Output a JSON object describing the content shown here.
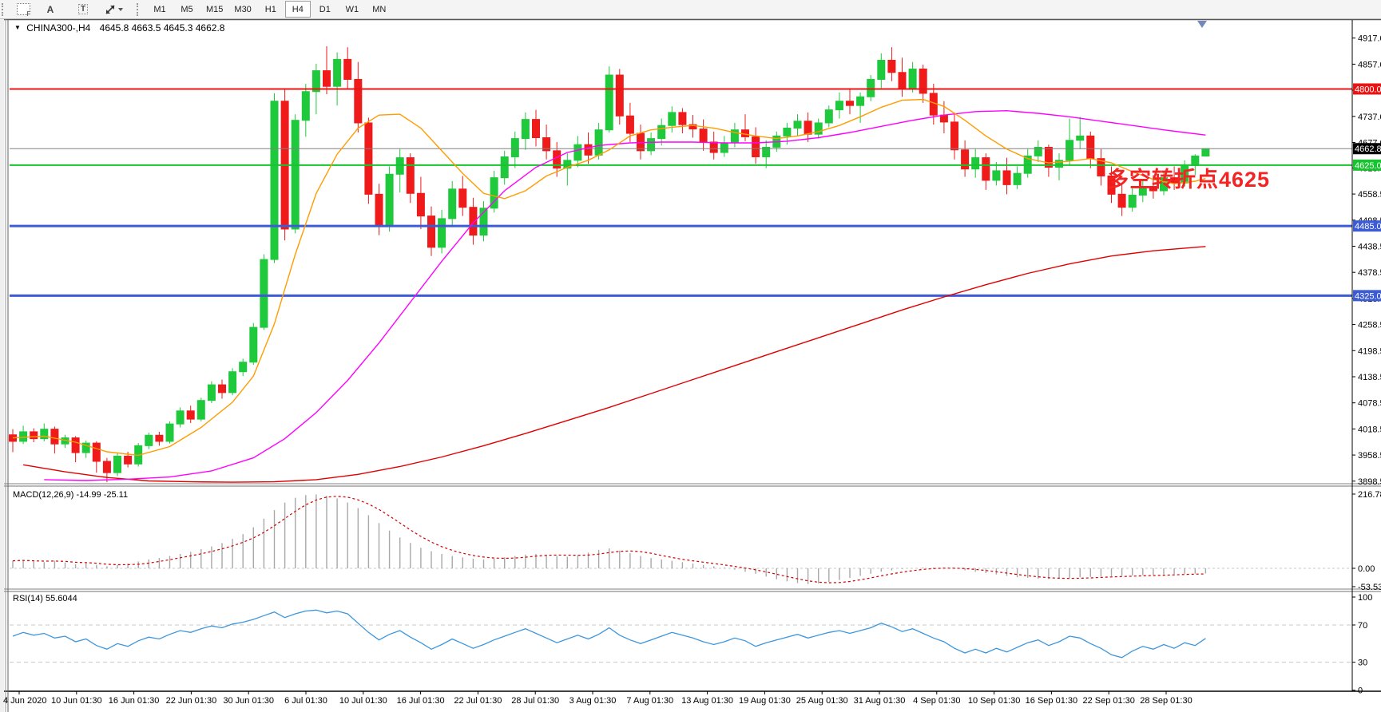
{
  "toolbar": {
    "icon_f": "F",
    "icon_a": "A",
    "icon_t": "T",
    "timeframes": [
      "M1",
      "M5",
      "M15",
      "M30",
      "H1",
      "H4",
      "D1",
      "W1",
      "MN"
    ],
    "active_timeframe": "H4"
  },
  "chart": {
    "symbol_period": "CHINA300-,H4",
    "ohlc": "4645.8 4663.5 4645.3 4662.8",
    "macd_label": "MACD(12,26,9) -14.99 -25.11",
    "rsi_label": "RSI(14) 55.6044",
    "annotation": {
      "text": "多空转折点4625"
    }
  },
  "colors": {
    "up": "#1ec93c",
    "down": "#ef1a1a",
    "ma_fast": "#ff9c00",
    "ma_mid": "#ff00ff",
    "ma_slow": "#e00000",
    "rsi_line": "#3d96dd",
    "macd_hist": "#a8a8a8",
    "macd_signal": "#d00000",
    "annotation": "#f22424",
    "axis_text": "#000000",
    "level_red": "#e81414",
    "level_green": "#17c32e",
    "level_blue": "#3d5bd5",
    "current_price_line": "#808080",
    "current_price_label_bg": "#000000"
  },
  "chart_data": {
    "type": "candlestick+indicators",
    "title": "CHINA300-,H4",
    "price_axis": {
      "ticks": [
        4917.0,
        4857.0,
        4797.0,
        4737.0,
        4677.0,
        4618.5,
        4558.5,
        4498.5,
        4438.5,
        4378.5,
        4318.5,
        4258.5,
        4198.5,
        4138.5,
        4078.5,
        4018.5,
        3958.5,
        3898.5
      ],
      "visible_range": [
        3880,
        4940
      ]
    },
    "levels": [
      {
        "price": 4800.0,
        "label": "4800.0",
        "line": "#e81414",
        "label_bg": "#e81414",
        "width": 2
      },
      {
        "price": 4662.8,
        "label": "4662.8",
        "line": "#808080",
        "label_bg": "#000000",
        "width": 1,
        "role": "current-price"
      },
      {
        "price": 4625.0,
        "label": "4625.0",
        "line": "#17c32e",
        "label_bg": "#17c32e",
        "width": 2
      },
      {
        "price": 4485.0,
        "label": "4485.0",
        "line": "#3d5bd5",
        "label_bg": "#3d5bd5",
        "width": 3
      },
      {
        "price": 4325.0,
        "label": "4325.0",
        "line": "#3d5bd5",
        "label_bg": "#3d5bd5",
        "width": 3
      }
    ],
    "x_labels": [
      "4 Jun 2020",
      "10 Jun 01:30",
      "16 Jun 01:30",
      "22 Jun 01:30",
      "30 Jun 01:30",
      "6 Jul 01:30",
      "10 Jul 01:30",
      "16 Jul 01:30",
      "22 Jul 01:30",
      "28 Jul 01:30",
      "3 Aug 01:30",
      "7 Aug 01:30",
      "13 Aug 01:30",
      "19 Aug 01:30",
      "25 Aug 01:30",
      "31 Aug 01:30",
      "4 Sep 01:30",
      "10 Sep 01:30",
      "16 Sep 01:30",
      "22 Sep 01:30",
      "28 Sep 01:30"
    ],
    "candles": [
      [
        4005,
        4018,
        3965,
        3990
      ],
      [
        3990,
        4026,
        3984,
        4012
      ],
      [
        4012,
        4020,
        3988,
        3996
      ],
      [
        3996,
        4031,
        3990,
        4018
      ],
      [
        4018,
        4024,
        3962,
        3984
      ],
      [
        3984,
        4005,
        3975,
        3998
      ],
      [
        3998,
        4002,
        3942,
        3964
      ],
      [
        3964,
        3992,
        3952,
        3986
      ],
      [
        3986,
        3990,
        3918,
        3944
      ],
      [
        3944,
        3952,
        3896,
        3918
      ],
      [
        3918,
        3962,
        3910,
        3956
      ],
      [
        3956,
        3966,
        3930,
        3938
      ],
      [
        3938,
        3986,
        3932,
        3980
      ],
      [
        3980,
        4010,
        3972,
        4004
      ],
      [
        4004,
        4012,
        3980,
        3990
      ],
      [
        3990,
        4036,
        3985,
        4030
      ],
      [
        4030,
        4068,
        4022,
        4060
      ],
      [
        4060,
        4072,
        4032,
        4041
      ],
      [
        4041,
        4090,
        4036,
        4084
      ],
      [
        4084,
        4128,
        4078,
        4120
      ],
      [
        4120,
        4132,
        4088,
        4102
      ],
      [
        4102,
        4158,
        4096,
        4150
      ],
      [
        4150,
        4180,
        4140,
        4172
      ],
      [
        4172,
        4262,
        4166,
        4252
      ],
      [
        4252,
        4420,
        4246,
        4408
      ],
      [
        4408,
        4790,
        4400,
        4772
      ],
      [
        4772,
        4802,
        4452,
        4478
      ],
      [
        4478,
        4742,
        4468,
        4728
      ],
      [
        4728,
        4812,
        4690,
        4794
      ],
      [
        4794,
        4858,
        4742,
        4842
      ],
      [
        4842,
        4898,
        4788,
        4806
      ],
      [
        4806,
        4884,
        4762,
        4868
      ],
      [
        4868,
        4896,
        4800,
        4822
      ],
      [
        4822,
        4862,
        4700,
        4722
      ],
      [
        4722,
        4734,
        4536,
        4558
      ],
      [
        4558,
        4582,
        4464,
        4486
      ],
      [
        4486,
        4622,
        4472,
        4604
      ],
      [
        4604,
        4662,
        4562,
        4642
      ],
      [
        4642,
        4652,
        4538,
        4560
      ],
      [
        4560,
        4598,
        4478,
        4508
      ],
      [
        4508,
        4530,
        4416,
        4436
      ],
      [
        4436,
        4522,
        4422,
        4502
      ],
      [
        4502,
        4588,
        4482,
        4570
      ],
      [
        4570,
        4600,
        4508,
        4528
      ],
      [
        4528,
        4550,
        4442,
        4464
      ],
      [
        4464,
        4542,
        4450,
        4526
      ],
      [
        4526,
        4612,
        4516,
        4596
      ],
      [
        4596,
        4658,
        4580,
        4644
      ],
      [
        4644,
        4702,
        4618,
        4686
      ],
      [
        4686,
        4746,
        4660,
        4730
      ],
      [
        4730,
        4752,
        4668,
        4688
      ],
      [
        4688,
        4718,
        4638,
        4658
      ],
      [
        4658,
        4678,
        4598,
        4618
      ],
      [
        4618,
        4652,
        4578,
        4636
      ],
      [
        4636,
        4692,
        4620,
        4672
      ],
      [
        4672,
        4700,
        4628,
        4648
      ],
      [
        4648,
        4722,
        4638,
        4706
      ],
      [
        4706,
        4852,
        4700,
        4832
      ],
      [
        4832,
        4846,
        4718,
        4738
      ],
      [
        4738,
        4768,
        4678,
        4698
      ],
      [
        4698,
        4718,
        4638,
        4658
      ],
      [
        4658,
        4700,
        4648,
        4686
      ],
      [
        4686,
        4732,
        4670,
        4716
      ],
      [
        4716,
        4760,
        4700,
        4746
      ],
      [
        4746,
        4756,
        4698,
        4718
      ],
      [
        4718,
        4740,
        4688,
        4708
      ],
      [
        4708,
        4730,
        4658,
        4678
      ],
      [
        4678,
        4702,
        4638,
        4654
      ],
      [
        4654,
        4692,
        4644,
        4676
      ],
      [
        4676,
        4722,
        4666,
        4706
      ],
      [
        4706,
        4742,
        4680,
        4690
      ],
      [
        4690,
        4712,
        4628,
        4644
      ],
      [
        4644,
        4682,
        4618,
        4666
      ],
      [
        4666,
        4702,
        4656,
        4692
      ],
      [
        4692,
        4722,
        4672,
        4710
      ],
      [
        4710,
        4742,
        4692,
        4726
      ],
      [
        4726,
        4746,
        4678,
        4696
      ],
      [
        4696,
        4732,
        4686,
        4722
      ],
      [
        4722,
        4762,
        4712,
        4752
      ],
      [
        4752,
        4792,
        4732,
        4772
      ],
      [
        4772,
        4802,
        4742,
        4762
      ],
      [
        4762,
        4792,
        4722,
        4782
      ],
      [
        4782,
        4832,
        4772,
        4822
      ],
      [
        4822,
        4882,
        4802,
        4866
      ],
      [
        4866,
        4896,
        4818,
        4838
      ],
      [
        4838,
        4872,
        4782,
        4802
      ],
      [
        4802,
        4862,
        4792,
        4846
      ],
      [
        4846,
        4856,
        4768,
        4790
      ],
      [
        4790,
        4812,
        4718,
        4740
      ],
      [
        4740,
        4772,
        4698,
        4724
      ],
      [
        4724,
        4746,
        4638,
        4660
      ],
      [
        4660,
        4682,
        4598,
        4616
      ],
      [
        4616,
        4662,
        4596,
        4642
      ],
      [
        4642,
        4652,
        4568,
        4590
      ],
      [
        4590,
        4632,
        4578,
        4612
      ],
      [
        4612,
        4642,
        4558,
        4580
      ],
      [
        4580,
        4622,
        4570,
        4606
      ],
      [
        4606,
        4662,
        4596,
        4646
      ],
      [
        4646,
        4682,
        4632,
        4666
      ],
      [
        4666,
        4672,
        4598,
        4620
      ],
      [
        4620,
        4652,
        4590,
        4636
      ],
      [
        4636,
        4732,
        4626,
        4682
      ],
      [
        4682,
        4736,
        4662,
        4692
      ],
      [
        4692,
        4702,
        4618,
        4640
      ],
      [
        4640,
        4662,
        4578,
        4600
      ],
      [
        4600,
        4622,
        4538,
        4558
      ],
      [
        4558,
        4582,
        4508,
        4528
      ],
      [
        4528,
        4572,
        4518,
        4556
      ],
      [
        4556,
        4592,
        4540,
        4576
      ],
      [
        4576,
        4602,
        4548,
        4566
      ],
      [
        4566,
        4612,
        4556,
        4596
      ],
      [
        4596,
        4622,
        4568,
        4584
      ],
      [
        4584,
        4636,
        4576,
        4624
      ],
      [
        4624,
        4650,
        4602,
        4646
      ],
      [
        4645.8,
        4663.5,
        4645.3,
        4662.8
      ]
    ],
    "ma_fast": [
      [
        0,
        3998
      ],
      [
        3,
        4002
      ],
      [
        6,
        3988
      ],
      [
        9,
        3966
      ],
      [
        12,
        3958
      ],
      [
        15,
        3978
      ],
      [
        18,
        4022
      ],
      [
        21,
        4080
      ],
      [
        23,
        4140
      ],
      [
        25,
        4260
      ],
      [
        27,
        4420
      ],
      [
        29,
        4560
      ],
      [
        31,
        4650
      ],
      [
        33,
        4710
      ],
      [
        35,
        4740
      ],
      [
        37,
        4742
      ],
      [
        39,
        4710
      ],
      [
        41,
        4658
      ],
      [
        43,
        4606
      ],
      [
        45,
        4560
      ],
      [
        47,
        4548
      ],
      [
        49,
        4566
      ],
      [
        51,
        4600
      ],
      [
        53,
        4620
      ],
      [
        55,
        4636
      ],
      [
        57,
        4660
      ],
      [
        59,
        4692
      ],
      [
        61,
        4706
      ],
      [
        63,
        4712
      ],
      [
        65,
        4716
      ],
      [
        67,
        4710
      ],
      [
        69,
        4700
      ],
      [
        71,
        4692
      ],
      [
        73,
        4686
      ],
      [
        75,
        4692
      ],
      [
        77,
        4702
      ],
      [
        79,
        4716
      ],
      [
        81,
        4736
      ],
      [
        83,
        4758
      ],
      [
        85,
        4774
      ],
      [
        87,
        4776
      ],
      [
        89,
        4760
      ],
      [
        91,
        4728
      ],
      [
        93,
        4692
      ],
      [
        95,
        4662
      ],
      [
        97,
        4640
      ],
      [
        99,
        4630
      ],
      [
        101,
        4634
      ],
      [
        103,
        4640
      ],
      [
        105,
        4630
      ],
      [
        107,
        4610
      ],
      [
        109,
        4592
      ],
      [
        111,
        4582
      ],
      [
        113,
        4588
      ],
      [
        114,
        4594
      ]
    ],
    "ma_mid": [
      [
        3,
        3902
      ],
      [
        7,
        3900
      ],
      [
        11,
        3903
      ],
      [
        15,
        3908
      ],
      [
        19,
        3922
      ],
      [
        23,
        3952
      ],
      [
        26,
        3996
      ],
      [
        29,
        4056
      ],
      [
        32,
        4130
      ],
      [
        35,
        4216
      ],
      [
        38,
        4310
      ],
      [
        41,
        4404
      ],
      [
        44,
        4492
      ],
      [
        47,
        4566
      ],
      [
        50,
        4620
      ],
      [
        53,
        4654
      ],
      [
        56,
        4670
      ],
      [
        59,
        4676
      ],
      [
        62,
        4678
      ],
      [
        65,
        4678
      ],
      [
        68,
        4676
      ],
      [
        71,
        4676
      ],
      [
        74,
        4680
      ],
      [
        77,
        4688
      ],
      [
        80,
        4700
      ],
      [
        83,
        4714
      ],
      [
        86,
        4728
      ],
      [
        89,
        4740
      ],
      [
        92,
        4748
      ],
      [
        95,
        4750
      ],
      [
        98,
        4744
      ],
      [
        101,
        4736
      ],
      [
        104,
        4726
      ],
      [
        107,
        4716
      ],
      [
        110,
        4706
      ],
      [
        112,
        4700
      ],
      [
        114,
        4694
      ]
    ],
    "ma_slow": [
      [
        1,
        3936
      ],
      [
        5,
        3920
      ],
      [
        9,
        3907
      ],
      [
        13,
        3899
      ],
      [
        17,
        3897
      ],
      [
        21,
        3896
      ],
      [
        25,
        3897
      ],
      [
        29,
        3902
      ],
      [
        33,
        3914
      ],
      [
        37,
        3932
      ],
      [
        41,
        3954
      ],
      [
        45,
        3980
      ],
      [
        49,
        4008
      ],
      [
        53,
        4038
      ],
      [
        57,
        4068
      ],
      [
        61,
        4100
      ],
      [
        65,
        4132
      ],
      [
        69,
        4164
      ],
      [
        73,
        4196
      ],
      [
        77,
        4228
      ],
      [
        81,
        4260
      ],
      [
        85,
        4292
      ],
      [
        89,
        4322
      ],
      [
        93,
        4350
      ],
      [
        97,
        4376
      ],
      [
        101,
        4398
      ],
      [
        105,
        4416
      ],
      [
        109,
        4428
      ],
      [
        112,
        4434
      ],
      [
        114,
        4438
      ]
    ],
    "macd": {
      "label": "MACD(12,26,9) -14.99 -25.11",
      "axis_ticks": [
        216.78,
        0.0,
        -53.53
      ],
      "axis_labels": [
        "216.78",
        "0.00",
        "-53.53"
      ],
      "hist": [
        22,
        24,
        20,
        18,
        22,
        17,
        12,
        14,
        10,
        6,
        10,
        14,
        20,
        26,
        30,
        36,
        42,
        48,
        56,
        64,
        74,
        86,
        100,
        120,
        145,
        170,
        192,
        206,
        214,
        216,
        212,
        204,
        192,
        176,
        155,
        132,
        110,
        90,
        74,
        60,
        50,
        42,
        36,
        32,
        28,
        26,
        28,
        32,
        36,
        40,
        42,
        40,
        36,
        34,
        38,
        46,
        54,
        58,
        52,
        44,
        36,
        30,
        26,
        22,
        18,
        14,
        10,
        6,
        2,
        -4,
        -10,
        -16,
        -24,
        -32,
        -38,
        -43,
        -46,
        -44,
        -40,
        -34,
        -28,
        -22,
        -16,
        -10,
        -6,
        -2,
        0,
        2,
        2,
        0,
        -2,
        -6,
        -10,
        -14,
        -18,
        -22,
        -26,
        -28,
        -30,
        -31,
        -30,
        -28,
        -26,
        -25,
        -24,
        -23,
        -22,
        -21,
        -20,
        -19,
        -18,
        -17,
        -16,
        -15.5,
        -15
      ]
    },
    "rsi": {
      "label": "RSI(14) 55.6044",
      "axis_ticks": [
        100,
        70,
        30,
        0
      ],
      "axis_labels": [
        "100",
        "70",
        "30",
        "0"
      ],
      "overbought": 70,
      "oversold": 30,
      "values": [
        58,
        62,
        59,
        61,
        56,
        58,
        52,
        55,
        48,
        44,
        50,
        47,
        53,
        57,
        55,
        60,
        64,
        62,
        66,
        69,
        67,
        71,
        73,
        76,
        80,
        84,
        78,
        82,
        85,
        86,
        83,
        85,
        82,
        72,
        62,
        54,
        60,
        64,
        57,
        51,
        44,
        49,
        55,
        50,
        45,
        49,
        54,
        58,
        62,
        66,
        61,
        56,
        51,
        55,
        59,
        55,
        60,
        67,
        59,
        54,
        50,
        54,
        58,
        62,
        59,
        56,
        52,
        49,
        52,
        56,
        53,
        47,
        51,
        54,
        57,
        60,
        56,
        59,
        62,
        64,
        61,
        64,
        67,
        72,
        68,
        63,
        66,
        61,
        56,
        52,
        45,
        40,
        44,
        40,
        45,
        41,
        46,
        51,
        54,
        48,
        52,
        58,
        56,
        50,
        45,
        38,
        35,
        42,
        47,
        44,
        49,
        45,
        51,
        48,
        55.6
      ]
    }
  }
}
